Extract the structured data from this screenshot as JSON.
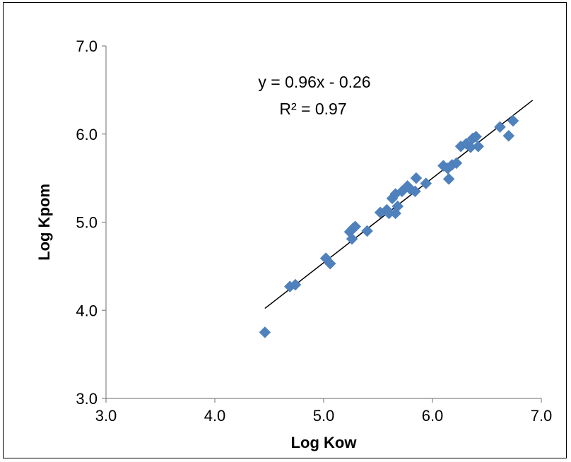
{
  "chart_data": {
    "type": "scatter",
    "xlabel": "Log Kow",
    "ylabel": "Log Kpom",
    "xlim": [
      3.0,
      7.0
    ],
    "ylim": [
      3.0,
      7.0
    ],
    "x_ticks": [
      "3.0",
      "4.0",
      "5.0",
      "6.0",
      "7.0"
    ],
    "y_ticks": [
      "3.0",
      "4.0",
      "5.0",
      "6.0",
      "7.0"
    ],
    "grid": false,
    "legend": "none",
    "marker": "diamond",
    "marker_color": "#4F81BD",
    "trendline": {
      "slope": 0.96,
      "intercept": -0.26,
      "x_range": [
        4.46,
        6.92
      ]
    },
    "annotations": [
      "y = 0.96x - 0.26",
      "R² = 0.97"
    ],
    "series": [
      {
        "points": [
          [
            4.46,
            3.75
          ],
          [
            4.69,
            4.27
          ],
          [
            4.74,
            4.29
          ],
          [
            5.02,
            4.59
          ],
          [
            5.06,
            4.53
          ],
          [
            5.24,
            4.89
          ],
          [
            5.26,
            4.81
          ],
          [
            5.27,
            4.93
          ],
          [
            5.29,
            4.95
          ],
          [
            5.4,
            4.9
          ],
          [
            5.52,
            5.11
          ],
          [
            5.58,
            5.14
          ],
          [
            5.6,
            5.1
          ],
          [
            5.63,
            5.27
          ],
          [
            5.66,
            5.32
          ],
          [
            5.66,
            5.1
          ],
          [
            5.68,
            5.18
          ],
          [
            5.72,
            5.35
          ],
          [
            5.77,
            5.41
          ],
          [
            5.8,
            5.37
          ],
          [
            5.84,
            5.35
          ],
          [
            5.85,
            5.5
          ],
          [
            5.94,
            5.44
          ],
          [
            6.1,
            5.64
          ],
          [
            6.14,
            5.61
          ],
          [
            6.15,
            5.49
          ],
          [
            6.18,
            5.65
          ],
          [
            6.22,
            5.67
          ],
          [
            6.26,
            5.86
          ],
          [
            6.31,
            5.89
          ],
          [
            6.35,
            5.85
          ],
          [
            6.37,
            5.95
          ],
          [
            6.4,
            5.97
          ],
          [
            6.42,
            5.86
          ],
          [
            6.62,
            6.08
          ],
          [
            6.7,
            5.98
          ],
          [
            6.74,
            6.15
          ]
        ]
      }
    ]
  }
}
